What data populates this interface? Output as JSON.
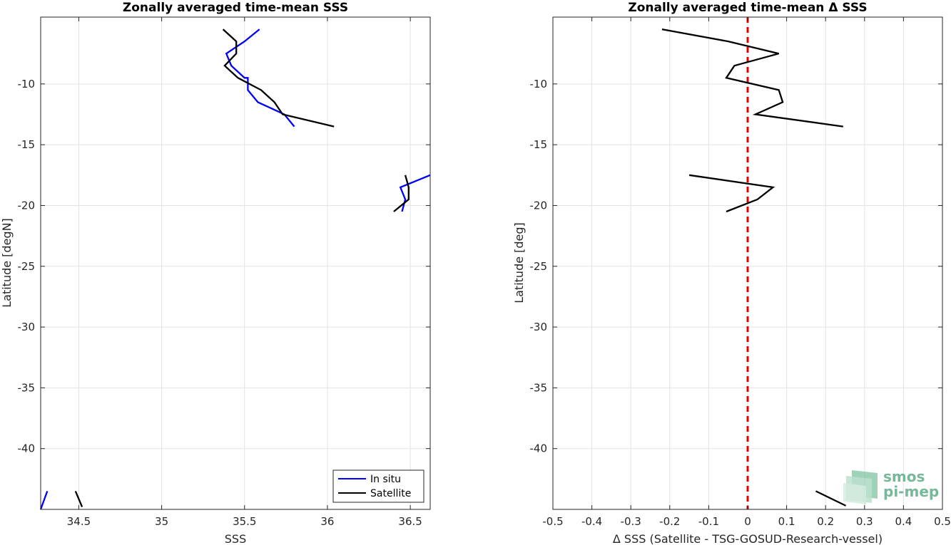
{
  "chart_data": [
    {
      "type": "line",
      "title": "Zonally averaged time-mean SSS",
      "xlabel": "SSS",
      "ylabel": "Latitude [degN]",
      "xlim": [
        34.27,
        36.62
      ],
      "ylim": [
        -45.0,
        -4.5
      ],
      "xticks": [
        34.5,
        35,
        35.5,
        36,
        36.5
      ],
      "xtick_labels": [
        "34.5",
        "35",
        "35.5",
        "36",
        "36.5"
      ],
      "yticks": [
        -10,
        -15,
        -20,
        -25,
        -30,
        -35,
        -40
      ],
      "ytick_labels": [
        "-10",
        "-15",
        "-20",
        "-25",
        "-30",
        "-35",
        "-40"
      ],
      "grid": true,
      "legend_position": "bottom-right",
      "series": [
        {
          "name": "In situ",
          "color": "#0000ff",
          "segments": [
            [
              [
                35.59,
                -5.5
              ],
              [
                35.5,
                -6.5
              ],
              [
                35.39,
                -7.5
              ],
              [
                35.42,
                -8.5
              ],
              [
                35.5,
                -9.5
              ],
              [
                35.52,
                -9.5
              ],
              [
                35.52,
                -10.5
              ],
              [
                35.58,
                -11.5
              ],
              [
                35.74,
                -12.5
              ],
              [
                35.8,
                -13.5
              ]
            ],
            [
              [
                36.62,
                -17.5
              ],
              [
                36.44,
                -18.5
              ],
              [
                36.47,
                -19.5
              ],
              [
                36.45,
                -20.5
              ]
            ],
            [
              [
                34.27,
                -45.0
              ],
              [
                34.31,
                -43.5
              ]
            ]
          ]
        },
        {
          "name": "Satellite",
          "color": "#000000",
          "segments": [
            [
              [
                35.37,
                -5.5
              ],
              [
                35.45,
                -6.5
              ],
              [
                35.45,
                -7.5
              ],
              [
                35.38,
                -8.5
              ],
              [
                35.46,
                -9.5
              ],
              [
                35.6,
                -10.5
              ],
              [
                35.68,
                -11.5
              ],
              [
                35.73,
                -12.5
              ],
              [
                36.04,
                -13.5
              ]
            ],
            [
              [
                36.47,
                -17.5
              ],
              [
                36.49,
                -18.5
              ],
              [
                36.49,
                -19.5
              ],
              [
                36.4,
                -20.5
              ]
            ],
            [
              [
                34.48,
                -43.5
              ],
              [
                34.52,
                -44.8
              ]
            ]
          ]
        }
      ]
    },
    {
      "type": "line",
      "title": "Zonally averaged time-mean Δ SSS",
      "xlabel": "Δ SSS (Satellite - TSG-GOSUD-Research-vessel)",
      "ylabel": "Latitude [deg]",
      "xlim": [
        -0.5,
        0.5
      ],
      "ylim": [
        -45.0,
        -4.5
      ],
      "xticks": [
        -0.5,
        -0.4,
        -0.3,
        -0.2,
        -0.1,
        0,
        0.1,
        0.2,
        0.3,
        0.4,
        0.5
      ],
      "xtick_labels": [
        "-0.5",
        "-0.4",
        "-0.3",
        "-0.2",
        "-0.1",
        "0",
        "0.1",
        "0.2",
        "0.3",
        "0.4",
        "0.5"
      ],
      "yticks": [
        -10,
        -15,
        -20,
        -25,
        -30,
        -35,
        -40
      ],
      "ytick_labels": [
        "-10",
        "-15",
        "-20",
        "-25",
        "-30",
        "-35",
        "-40"
      ],
      "grid": true,
      "reference_line": {
        "x": 0,
        "color": "#e60000",
        "style": "dashed"
      },
      "series": [
        {
          "color": "#000000",
          "segments": [
            [
              [
                -0.22,
                -5.5
              ],
              [
                -0.05,
                -6.5
              ],
              [
                0.08,
                -7.5
              ],
              [
                -0.034,
                -8.5
              ],
              [
                -0.055,
                -9.5
              ],
              [
                0.08,
                -10.5
              ],
              [
                0.09,
                -11.5
              ],
              [
                0.02,
                -12.5
              ],
              [
                0.245,
                -13.5
              ]
            ],
            [
              [
                -0.15,
                -17.5
              ],
              [
                0.065,
                -18.5
              ],
              [
                0.025,
                -19.5
              ],
              [
                -0.055,
                -20.5
              ]
            ],
            [
              [
                0.175,
                -43.5
              ],
              [
                0.252,
                -44.7
              ]
            ]
          ]
        }
      ]
    }
  ],
  "logo": {
    "line1": "smos",
    "line2": "pi-mep"
  }
}
